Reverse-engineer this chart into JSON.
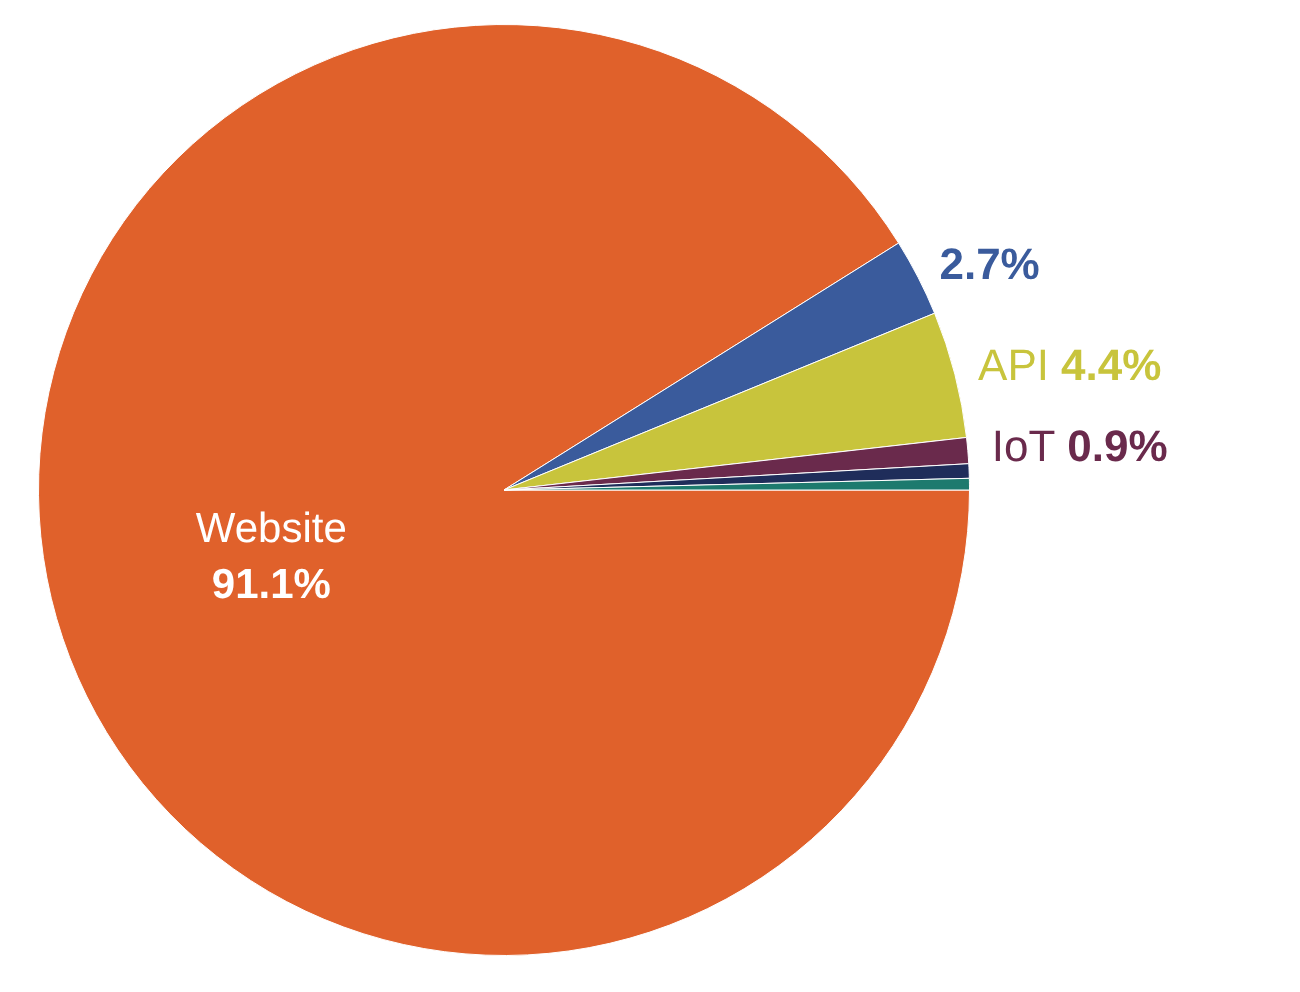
{
  "chart_data": {
    "type": "pie",
    "categories": [
      "Website",
      null,
      "API",
      "IoT",
      null,
      null
    ],
    "values": [
      91.1,
      2.7,
      4.4,
      0.9,
      0.5,
      0.4
    ],
    "value_labels": [
      "91.1%",
      "2.7%",
      "4.4%",
      "0.9%",
      null,
      null
    ],
    "colors": [
      "#e0612b",
      "#3a5b9c",
      "#c8c43c",
      "#6a2a4c",
      "#1f2d5a",
      "#1d7a6e"
    ]
  }
}
